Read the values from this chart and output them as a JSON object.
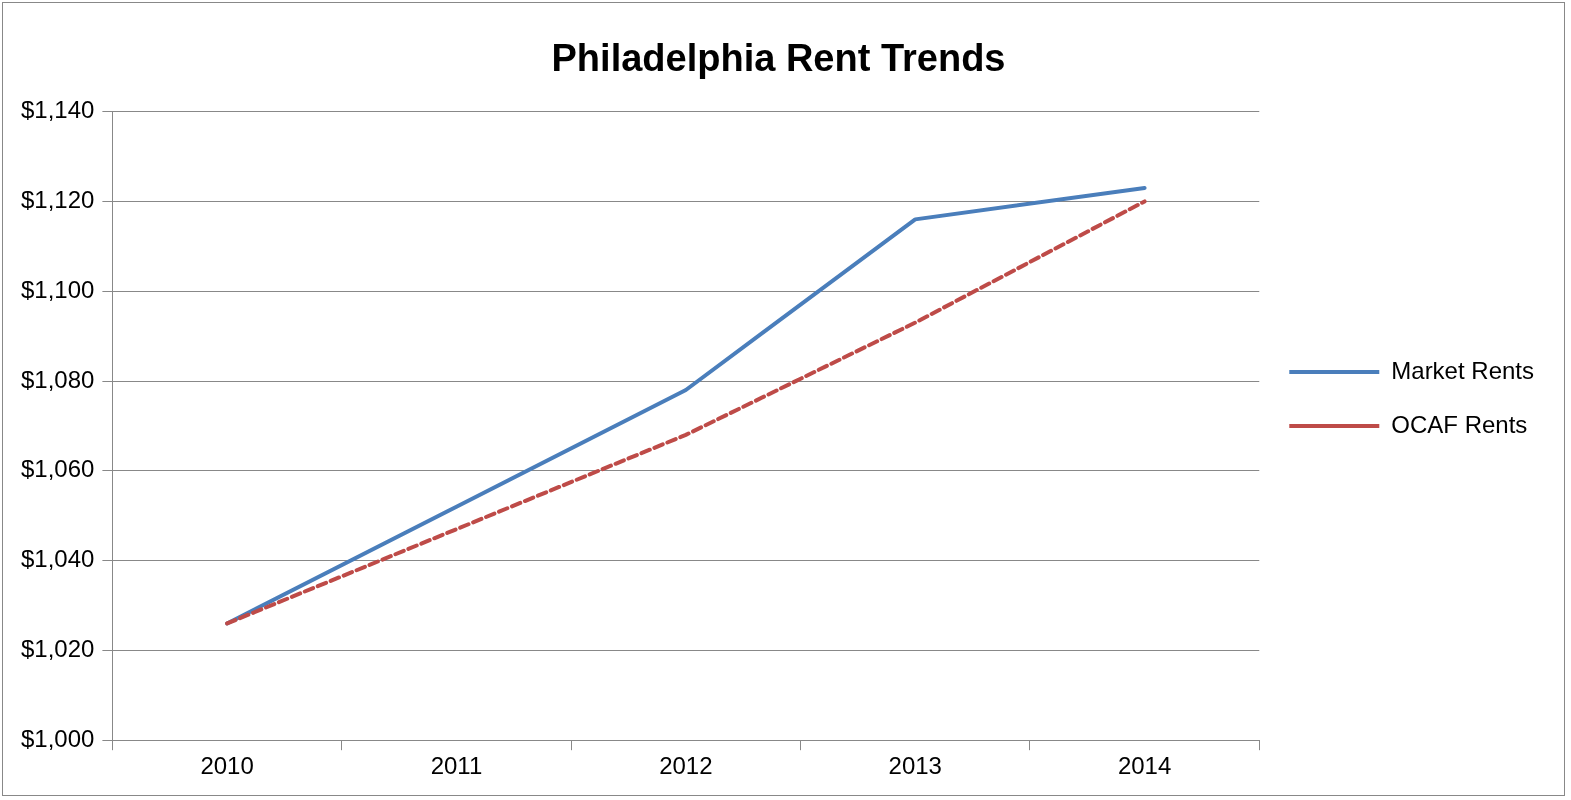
{
  "chart_data": {
    "type": "line",
    "title": "Philadelphia Rent Trends",
    "categories": [
      "2010",
      "2011",
      "2012",
      "2013",
      "2014"
    ],
    "series": [
      {
        "name": "Market Rents",
        "color": "#4a7ebb",
        "line_style": "solid",
        "values": [
          1026,
          1052,
          1078,
          1116,
          1123
        ]
      },
      {
        "name": "OCAF Rents",
        "color": "#be4b48",
        "line_style": "dashed",
        "values": [
          1026,
          1047,
          1068,
          1093,
          1120
        ]
      }
    ],
    "ylim": [
      1000,
      1140
    ],
    "yticks": [
      {
        "value": 1000,
        "label": "$1,000"
      },
      {
        "value": 1020,
        "label": "$1,020"
      },
      {
        "value": 1040,
        "label": "$1,040"
      },
      {
        "value": 1060,
        "label": "$1,060"
      },
      {
        "value": 1080,
        "label": "$1,080"
      },
      {
        "value": 1100,
        "label": "$1,100"
      },
      {
        "value": 1120,
        "label": "$1,120"
      },
      {
        "value": 1140,
        "label": "$1,140"
      }
    ],
    "grid": "y",
    "legend": "right",
    "marker": "none"
  }
}
